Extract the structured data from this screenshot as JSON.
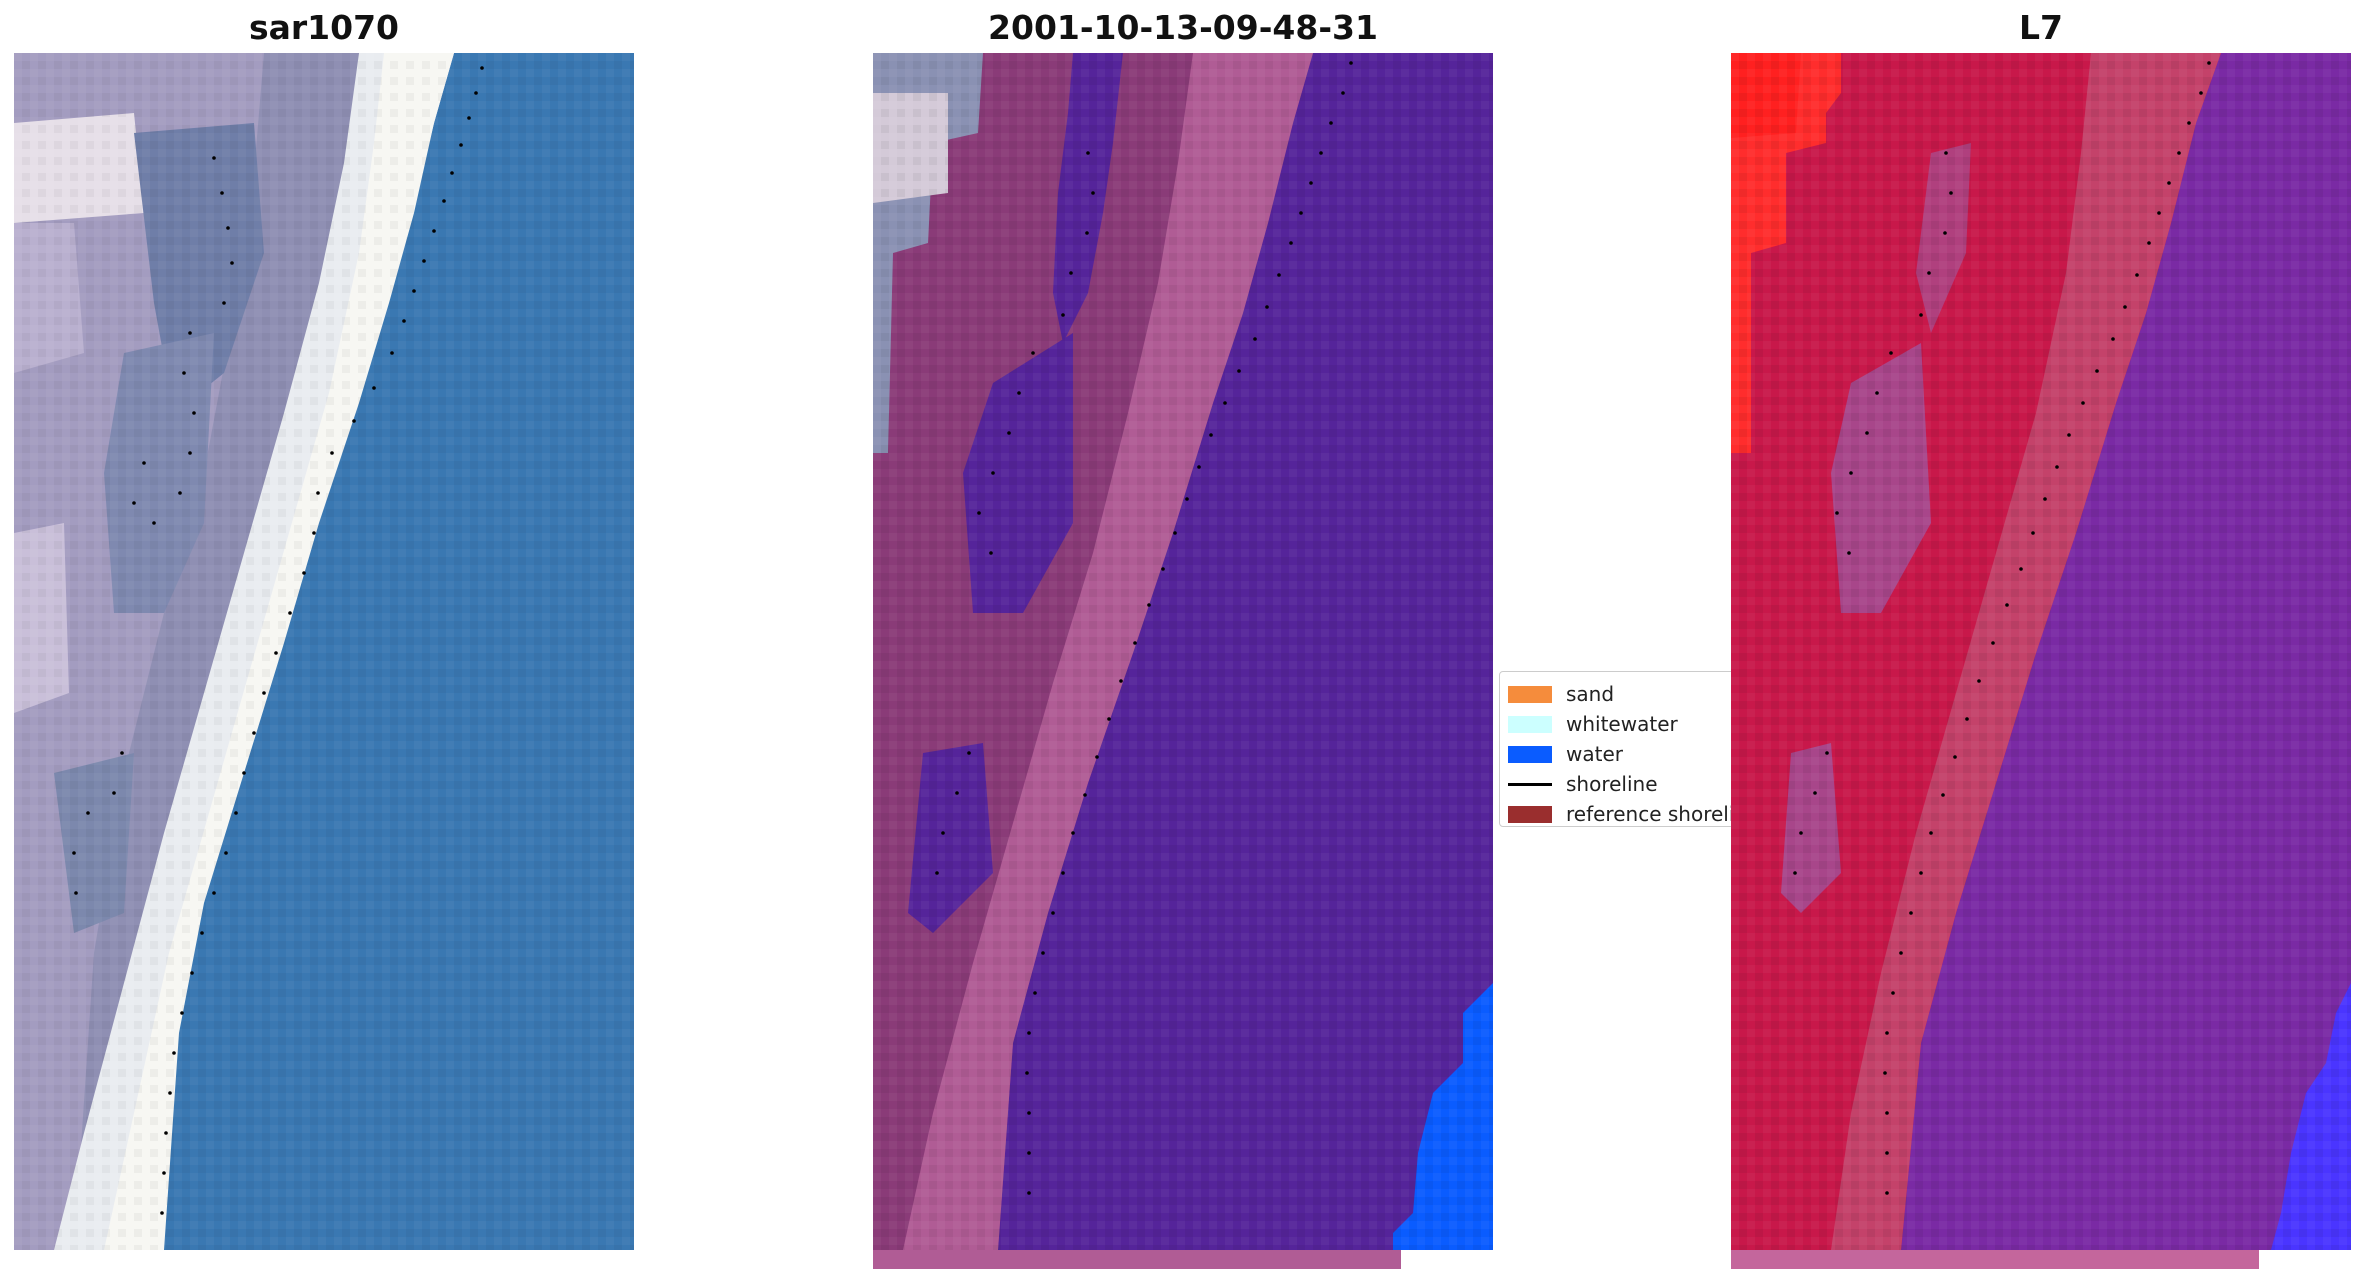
{
  "panels": [
    {
      "title": "sar1070"
    },
    {
      "title": "2001-10-13-09-48-31"
    },
    {
      "title": "L7"
    }
  ],
  "legend": {
    "items": [
      {
        "label": "sand",
        "color": "#f58c3c",
        "kind": "patch"
      },
      {
        "label": "whitewater",
        "color": "#ccffff",
        "kind": "patch"
      },
      {
        "label": "water",
        "color": "#0a5cff",
        "kind": "patch"
      },
      {
        "label": "shoreline",
        "color": "#000000",
        "kind": "line"
      },
      {
        "label": "reference shoreline",
        "color": "#9a2e2e",
        "kind": "patch"
      }
    ]
  },
  "colors": {
    "ocean_rgb": "#3a7ab5",
    "surf_white": "#f2f2ee",
    "dune_lilac": "#b5a7c9",
    "class_water_overlay": "#55249a",
    "class_land_overlay": "#8a3b78",
    "class_land_light": "#b05c95",
    "index_land": "#c8184a",
    "index_water": "#7a2aa4",
    "index_bright": "#ff2d2d",
    "water_class_blue": "#0a5cff",
    "shoreline_dots": "#000000"
  }
}
